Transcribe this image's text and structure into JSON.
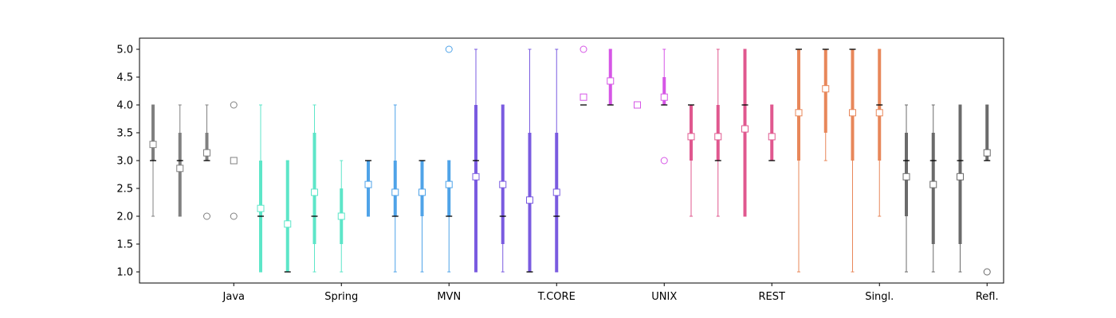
{
  "chart_data": {
    "type": "box",
    "title": "",
    "xlabel": "",
    "ylabel": "",
    "ylim": [
      0.8,
      5.2
    ],
    "yticks": [
      "1.0",
      "1.5",
      "2.0",
      "2.5",
      "3.0",
      "3.5",
      "4.0",
      "4.5",
      "5.0"
    ],
    "grid": false,
    "categories": [
      "Java",
      "Spring",
      "MVN",
      "T.CORE",
      "UNIX",
      "REST",
      "Singl.",
      "Refl."
    ],
    "groups": [
      {
        "category": "Java",
        "color": "#808080",
        "boxes": [
          {
            "whislo": 2.0,
            "q1": 3.0,
            "med": 3.0,
            "q3": 4.0,
            "whishi": 4.0,
            "mean": 3.29,
            "fliers": []
          },
          {
            "whislo": 2.0,
            "q1": 2.0,
            "med": 3.0,
            "q3": 3.5,
            "whishi": 4.0,
            "mean": 2.86,
            "fliers": []
          },
          {
            "whislo": 3.0,
            "q1": 3.0,
            "med": 3.0,
            "q3": 3.5,
            "whishi": 4.0,
            "mean": 3.14,
            "fliers": [
              2.0
            ]
          },
          {
            "whislo": 3.0,
            "q1": 3.0,
            "med": 3.0,
            "q3": 3.0,
            "whishi": 3.0,
            "mean": 3.0,
            "fliers": [
              2.0,
              4.0
            ]
          }
        ]
      },
      {
        "category": "Spring",
        "color": "#5de6c8",
        "boxes": [
          {
            "whislo": 1.0,
            "q1": 1.0,
            "med": 2.0,
            "q3": 3.0,
            "whishi": 4.0,
            "mean": 2.14,
            "fliers": []
          },
          {
            "whislo": 1.0,
            "q1": 1.0,
            "med": 1.0,
            "q3": 3.0,
            "whishi": 3.0,
            "mean": 1.86,
            "fliers": []
          },
          {
            "whislo": 1.0,
            "q1": 1.5,
            "med": 2.0,
            "q3": 3.5,
            "whishi": 4.0,
            "mean": 2.43,
            "fliers": []
          },
          {
            "whislo": 1.0,
            "q1": 1.5,
            "med": 2.0,
            "q3": 2.5,
            "whishi": 3.0,
            "mean": 2.0,
            "fliers": []
          }
        ]
      },
      {
        "category": "MVN",
        "color": "#4fa3e8",
        "boxes": [
          {
            "whislo": 2.0,
            "q1": 2.0,
            "med": 3.0,
            "q3": 3.0,
            "whishi": 3.0,
            "mean": 2.57,
            "fliers": []
          },
          {
            "whislo": 1.0,
            "q1": 2.0,
            "med": 2.0,
            "q3": 3.0,
            "whishi": 4.0,
            "mean": 2.43,
            "fliers": []
          },
          {
            "whislo": 1.0,
            "q1": 2.0,
            "med": 3.0,
            "q3": 3.0,
            "whishi": 3.0,
            "mean": 2.43,
            "fliers": []
          },
          {
            "whislo": 1.0,
            "q1": 2.0,
            "med": 2.0,
            "q3": 3.0,
            "whishi": 3.0,
            "mean": 2.57,
            "fliers": [
              5.0
            ]
          }
        ]
      },
      {
        "category": "T.CORE",
        "color": "#7a5be0",
        "boxes": [
          {
            "whislo": 1.0,
            "q1": 1.0,
            "med": 3.0,
            "q3": 4.0,
            "whishi": 5.0,
            "mean": 2.71,
            "fliers": []
          },
          {
            "whislo": 1.0,
            "q1": 1.5,
            "med": 2.0,
            "q3": 4.0,
            "whishi": 4.0,
            "mean": 2.57,
            "fliers": []
          },
          {
            "whislo": 1.0,
            "q1": 1.0,
            "med": 1.0,
            "q3": 3.5,
            "whishi": 5.0,
            "mean": 2.29,
            "fliers": []
          },
          {
            "whislo": 1.0,
            "q1": 1.0,
            "med": 2.0,
            "q3": 3.5,
            "whishi": 5.0,
            "mean": 2.43,
            "fliers": []
          }
        ]
      },
      {
        "category": "UNIX",
        "color": "#d656e6",
        "boxes": [
          {
            "whislo": 4.0,
            "q1": 4.0,
            "med": 4.0,
            "q3": 4.0,
            "whishi": 4.0,
            "mean": 4.14,
            "fliers": [
              5.0
            ]
          },
          {
            "whislo": 4.0,
            "q1": 4.0,
            "med": 4.0,
            "q3": 5.0,
            "whishi": 5.0,
            "mean": 4.43,
            "fliers": []
          },
          {
            "whislo": 4.0,
            "q1": 4.0,
            "med": 4.0,
            "q3": 4.0,
            "whishi": 4.0,
            "mean": 4.0,
            "fliers": []
          },
          {
            "whislo": 4.0,
            "q1": 4.0,
            "med": 4.0,
            "q3": 4.5,
            "whishi": 5.0,
            "mean": 4.14,
            "fliers": [
              3.0
            ]
          }
        ]
      },
      {
        "category": "REST",
        "color": "#e0588f",
        "boxes": [
          {
            "whislo": 2.0,
            "q1": 3.0,
            "med": 4.0,
            "q3": 4.0,
            "whishi": 4.0,
            "mean": 3.43,
            "fliers": []
          },
          {
            "whislo": 2.0,
            "q1": 3.0,
            "med": 3.0,
            "q3": 4.0,
            "whishi": 5.0,
            "mean": 3.43,
            "fliers": []
          },
          {
            "whislo": 2.0,
            "q1": 2.0,
            "med": 4.0,
            "q3": 5.0,
            "whishi": 5.0,
            "mean": 3.57,
            "fliers": []
          },
          {
            "whislo": 3.0,
            "q1": 3.0,
            "med": 3.0,
            "q3": 4.0,
            "whishi": 4.0,
            "mean": 3.43,
            "fliers": []
          }
        ]
      },
      {
        "category": "Singl.",
        "color": "#e8875a",
        "boxes": [
          {
            "whislo": 1.0,
            "q1": 3.0,
            "med": 5.0,
            "q3": 5.0,
            "whishi": 5.0,
            "mean": 3.86,
            "fliers": []
          },
          {
            "whislo": 3.0,
            "q1": 3.5,
            "med": 5.0,
            "q3": 5.0,
            "whishi": 5.0,
            "mean": 4.29,
            "fliers": []
          },
          {
            "whislo": 1.0,
            "q1": 3.0,
            "med": 5.0,
            "q3": 5.0,
            "whishi": 5.0,
            "mean": 3.86,
            "fliers": []
          },
          {
            "whislo": 2.0,
            "q1": 3.0,
            "med": 4.0,
            "q3": 5.0,
            "whishi": 5.0,
            "mean": 3.86,
            "fliers": []
          }
        ]
      },
      {
        "category": "Refl.",
        "color": "#6b6b6b",
        "boxes": [
          {
            "whislo": 1.0,
            "q1": 2.0,
            "med": 3.0,
            "q3": 3.5,
            "whishi": 4.0,
            "mean": 2.71,
            "fliers": []
          },
          {
            "whislo": 1.0,
            "q1": 1.5,
            "med": 3.0,
            "q3": 3.5,
            "whishi": 4.0,
            "mean": 2.57,
            "fliers": []
          },
          {
            "whislo": 1.0,
            "q1": 1.5,
            "med": 3.0,
            "q3": 4.0,
            "whishi": 4.0,
            "mean": 2.71,
            "fliers": []
          },
          {
            "whislo": 3.0,
            "q1": 3.0,
            "med": 3.0,
            "q3": 4.0,
            "whishi": 4.0,
            "mean": 3.14,
            "fliers": [
              1.0
            ]
          }
        ]
      }
    ]
  }
}
